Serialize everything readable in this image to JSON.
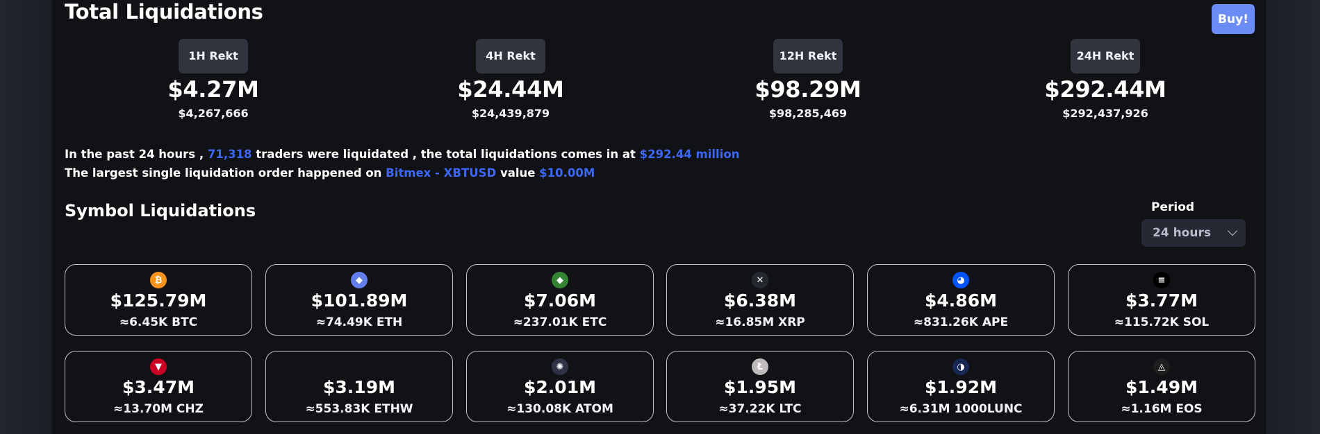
{
  "header": {
    "title": "Total Liquidations",
    "buy_label": "Buy!"
  },
  "rekt": [
    {
      "label": "1H Rekt",
      "value": "$4.27M",
      "exact": "$4,267,666"
    },
    {
      "label": "4H Rekt",
      "value": "$24.44M",
      "exact": "$24,439,879"
    },
    {
      "label": "12H Rekt",
      "value": "$98.29M",
      "exact": "$98,285,469"
    },
    {
      "label": "24H Rekt",
      "value": "$292.44M",
      "exact": "$292,437,926"
    }
  ],
  "summary": {
    "line1_a": "In the past 24 hours ,",
    "traders": "71,318",
    "line1_b": "traders were liquidated , the total liquidations comes in at",
    "total": "$292.44 million",
    "line2_a": "The largest single liquidation order happened on",
    "exchange": "Bitmex - XBTUSD",
    "line2_b": "value",
    "order_value": "$10.00M"
  },
  "symbols": {
    "title": "Symbol Liquidations",
    "period_label": "Period",
    "period_value": "24 hours",
    "cards": [
      {
        "value": "$125.79M",
        "amount": "≈6.45K BTC",
        "icon": "btc-icon",
        "color": "#f7931a",
        "glyph": "₿"
      },
      {
        "value": "$101.89M",
        "amount": "≈74.49K ETH",
        "icon": "eth-icon",
        "color": "#627eea",
        "glyph": "◆"
      },
      {
        "value": "$7.06M",
        "amount": "≈237.01K ETC",
        "icon": "etc-icon",
        "color": "#328332",
        "glyph": "◆"
      },
      {
        "value": "$6.38M",
        "amount": "≈16.85M XRP",
        "icon": "xrp-icon",
        "color": "#23292f",
        "glyph": "✕"
      },
      {
        "value": "$4.86M",
        "amount": "≈831.26K APE",
        "icon": "ape-icon",
        "color": "#0054f9",
        "glyph": "◕"
      },
      {
        "value": "$3.77M",
        "amount": "≈115.72K SOL",
        "icon": "sol-icon",
        "color": "#000000",
        "glyph": "≡"
      },
      {
        "value": "$3.47M",
        "amount": "≈13.70M CHZ",
        "icon": "chz-icon",
        "color": "#cd0124",
        "glyph": "▼"
      },
      {
        "value": "$3.19M",
        "amount": "≈553.83K ETHW",
        "icon": "ethw-icon",
        "color": "#111215",
        "glyph": ""
      },
      {
        "value": "$2.01M",
        "amount": "≈130.08K ATOM",
        "icon": "atom-icon",
        "color": "#2e3148",
        "glyph": "✺"
      },
      {
        "value": "$1.95M",
        "amount": "≈37.22K LTC",
        "icon": "ltc-icon",
        "color": "#bfbbbb",
        "glyph": "Ł"
      },
      {
        "value": "$1.92M",
        "amount": "≈6.31M 1000LUNC",
        "icon": "lunc-icon",
        "color": "#172852",
        "glyph": "◑"
      },
      {
        "value": "$1.49M",
        "amount": "≈1.16M EOS",
        "icon": "eos-icon",
        "color": "#1e1e1e",
        "glyph": "◬"
      }
    ]
  }
}
